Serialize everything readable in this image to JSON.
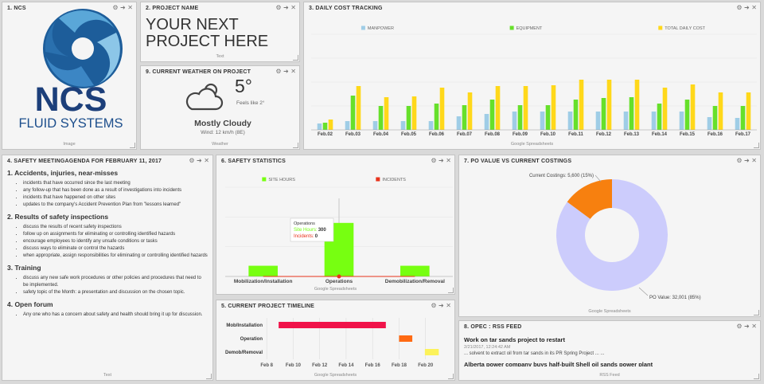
{
  "panels": {
    "ncs": {
      "title": "1. NCS",
      "logo_name": "NCS",
      "logo_tagline": "FLUID SYSTEMS",
      "footer": "Image"
    },
    "project": {
      "title": "2. PROJECT NAME",
      "lines": [
        "YOUR NEXT",
        "PROJECT HERE"
      ],
      "footer": "Text"
    },
    "weather": {
      "title": "9. CURRENT WEATHER ON PROJECT",
      "temperature": "5°",
      "feels_like": "Feels like 2°",
      "condition": "Mostly Cloudy",
      "wind": "Wind: 12 km/h (8E)",
      "footer": "Weather"
    },
    "cost": {
      "title": "3. DAILY COST TRACKING",
      "footer": "Google Spreadsheets"
    },
    "meeting": {
      "title": "4. SAFETY MEETINGAGENDA FOR FEBRUARY 11, 2017",
      "footer": "Text",
      "sections": [
        {
          "heading": "1. Accidents, injuries, near-misses",
          "items": [
            "incidents that have occurred since the last meeting",
            "any follow-up that has been done as a result of investigations into incidents",
            "incidents that have happened on other sites",
            "updates to the company's Accident Prevention Plan from \"lessons learned\""
          ]
        },
        {
          "heading": "2. Results of safety inspections",
          "items": [
            "discuss the results of recent safety inspections",
            "follow up on assignments for eliminating or controlling identified hazards",
            "encourage employees to identify any unsafe conditions or tasks",
            "discuss ways to eliminate or control the hazards",
            "when appropriate, assign responsibilities for eliminating or controlling identified hazards"
          ]
        },
        {
          "heading": "3. Training",
          "items": [
            "discuss any new safe work procedures or other policies and procedures that need to be implemented.",
            "safety topic of the Month: a presentation and discussion on the chosen topic."
          ]
        },
        {
          "heading": "4. Open forum",
          "items": [
            "Any one who has a concern about safety and health should bring it up for discussion."
          ]
        }
      ]
    },
    "safety": {
      "title": "6. SAFETY STATISTICS",
      "footer": "Google Spreadsheets",
      "tooltip_labels": [
        "Site Hours:",
        "Incidents:"
      ]
    },
    "po": {
      "title": "7. PO VALUE VS CURRENT COSTINGS",
      "footer": "Google Spreadsheets"
    },
    "timeline": {
      "title": "5. CURRENT PROJECT TIMELINE",
      "footer": "Google Spreadsheets"
    },
    "rss": {
      "title": "8. OPEC : RSS FEED",
      "footer": "RSS Feed",
      "items": [
        {
          "headline": "Work on tar sands project to restart",
          "date": "2/21/2017, 12:24:42 AM",
          "summary": "... solvent to extract oil from tar sands in its PR Spring Project ... ..."
        },
        {
          "headline": "Alberta power company buys half-built Shell oil sands power plant"
        }
      ]
    }
  },
  "chart_data": [
    {
      "type": "bar",
      "categories": [
        "Feb.02",
        "Feb.03",
        "Feb.04",
        "Feb.05",
        "Feb.06",
        "Feb.07",
        "Feb.08",
        "Feb.09",
        "Feb.10",
        "Feb.11",
        "Feb.12",
        "Feb.13",
        "Feb.14",
        "Feb.15",
        "Feb.16",
        "Feb.17"
      ],
      "series": [
        {
          "name": "MANPOWER",
          "color": "#9fcde6",
          "values": [
            8,
            11,
            11,
            11,
            11,
            17,
            20,
            23,
            23,
            23,
            23,
            23,
            23,
            23,
            16,
            15
          ]
        },
        {
          "name": "EQUIPMENT",
          "color": "#66e02a",
          "values": [
            9,
            43,
            30,
            30,
            33,
            31,
            38,
            31,
            31,
            38,
            40,
            41,
            33,
            38,
            30,
            30
          ]
        },
        {
          "name": "TOTAL DAILY COST",
          "color": "#ffd81a",
          "values": [
            13,
            55,
            41,
            42,
            53,
            47,
            55,
            55,
            56,
            63,
            63,
            63,
            53,
            57,
            47,
            47
          ]
        }
      ],
      "ylim": [
        0,
        120
      ]
    },
    {
      "type": "bar",
      "categories": [
        "Mobilization/Installation",
        "Operations",
        "Demobilization/Removal"
      ],
      "series": [
        {
          "name": "SITE HOURS",
          "color": "#77ff11",
          "values": [
            60,
            300,
            60
          ]
        },
        {
          "name": "INCIDENTS",
          "color": "#e8331c",
          "type": "line",
          "values": [
            0,
            0,
            0
          ]
        }
      ],
      "ylim": [
        0,
        500
      ]
    },
    {
      "type": "pie",
      "donut": true,
      "categories": [
        "Current Costings",
        "PO Value"
      ],
      "values": [
        5600,
        32001
      ],
      "value_labels": [
        "Current Costings: 5,600 (15%)",
        "PO Value: 32,001 (85%)"
      ],
      "colors": [
        "#f7800f",
        "#ccccfc"
      ]
    },
    {
      "type": "gantt",
      "tasks": [
        {
          "name": "Mob/Installation",
          "start": 8.9,
          "end": 17.0,
          "color": "#f0134a"
        },
        {
          "name": "Operation",
          "start": 18.0,
          "end": 19.0,
          "color": "#ff6a13"
        },
        {
          "name": "Demob/Removal",
          "start": 19.95,
          "end": 21.0,
          "color": "#fcf25a"
        }
      ],
      "xlim": [
        7.75,
        21.1
      ],
      "xticks": [
        {
          "value": 8,
          "label": "Feb 8"
        },
        {
          "value": 10,
          "label": "Feb 10"
        },
        {
          "value": 12,
          "label": "Feb 12"
        },
        {
          "value": 14,
          "label": "Feb 14"
        },
        {
          "value": 16,
          "label": "Feb 16"
        },
        {
          "value": 18,
          "label": "Feb 18"
        },
        {
          "value": 20,
          "label": "Feb 20"
        }
      ],
      "grid": true
    }
  ]
}
